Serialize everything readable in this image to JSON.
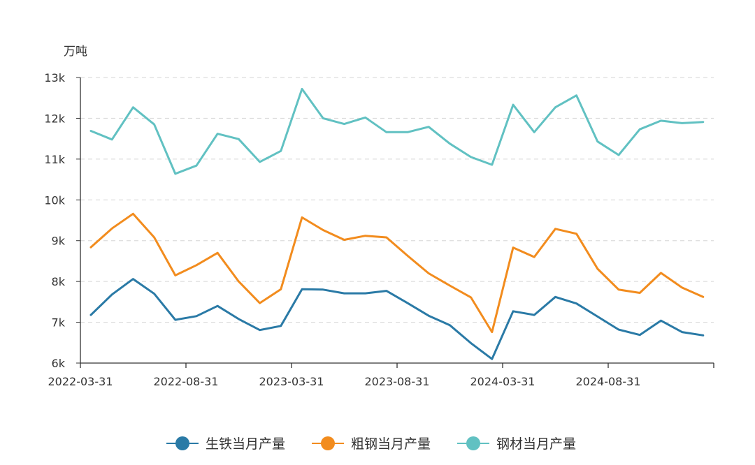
{
  "chart_data": {
    "type": "line",
    "title": "",
    "unit_label": "万吨",
    "ylim": [
      6000,
      13000
    ],
    "y_ticks": [
      {
        "value": 6000,
        "label": "6k"
      },
      {
        "value": 7000,
        "label": "7k"
      },
      {
        "value": 8000,
        "label": "8k"
      },
      {
        "value": 9000,
        "label": "9k"
      },
      {
        "value": 10000,
        "label": "10k"
      },
      {
        "value": 11000,
        "label": "11k"
      },
      {
        "value": 12000,
        "label": "12k"
      },
      {
        "value": 13000,
        "label": "13k"
      }
    ],
    "x_tick_labels": [
      {
        "index": 0,
        "label": "2022-03-31"
      },
      {
        "index": 5,
        "label": "2022-08-31"
      },
      {
        "index": 10,
        "label": "2023-03-31"
      },
      {
        "index": 15,
        "label": "2023-08-31"
      },
      {
        "index": 20,
        "label": "2024-03-31"
      },
      {
        "index": 25,
        "label": "2024-08-31"
      }
    ],
    "x_count": 30,
    "grid": true,
    "legend_position": "bottom-center",
    "series": [
      {
        "name": "生铁当月产量",
        "color": "#2a7aa6",
        "values": [
          7180,
          7680,
          8060,
          7700,
          7060,
          7150,
          7400,
          7080,
          6810,
          6910,
          7810,
          7800,
          7710,
          7710,
          7770,
          7470,
          7160,
          6930,
          6490,
          6100,
          7270,
          7180,
          7620,
          7460,
          7140,
          6820,
          6690,
          7040,
          6760,
          6680
        ]
      },
      {
        "name": "粗钢当月产量",
        "color": "#f28c1e",
        "values": [
          8840,
          9300,
          9660,
          9080,
          8150,
          8400,
          8700,
          8000,
          7470,
          7810,
          9570,
          9260,
          9020,
          9120,
          9080,
          8630,
          8200,
          7900,
          7610,
          6760,
          8830,
          8600,
          9290,
          9170,
          8310,
          7800,
          7720,
          8210,
          7850,
          7620
        ]
      },
      {
        "name": "钢材当月产量",
        "color": "#61c1c2",
        "values": [
          11690,
          11480,
          12270,
          11850,
          10640,
          10840,
          11620,
          11490,
          10930,
          11200,
          12720,
          12000,
          11860,
          12020,
          11660,
          11660,
          11790,
          11380,
          11050,
          10860,
          12330,
          11660,
          12270,
          12560,
          11430,
          11100,
          11730,
          11940,
          11880,
          11910
        ]
      }
    ]
  }
}
